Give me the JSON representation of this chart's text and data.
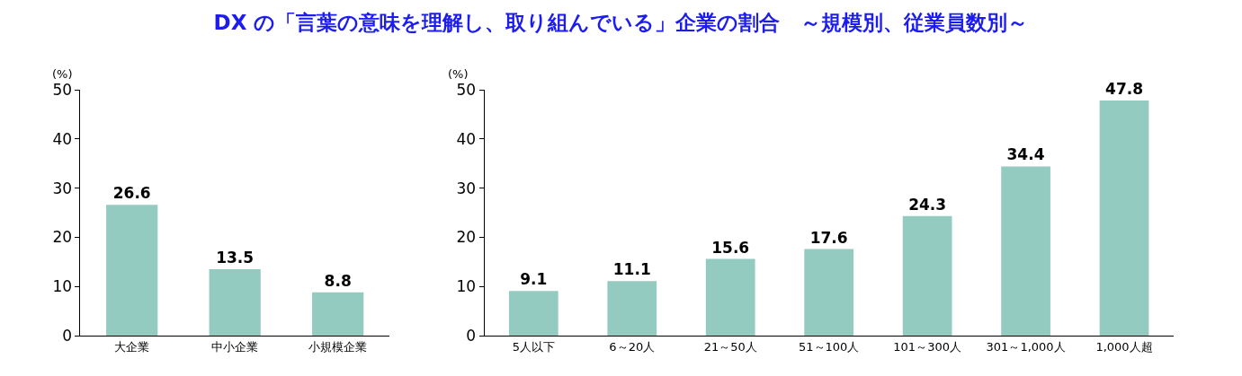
{
  "chart_data": [
    {
      "type": "bar",
      "title": "DX の「言葉の意味を理解し、取り組んでいる」企業の割合　～規模別、従業員数別～",
      "ylabel": "(%)",
      "categories": [
        "大企業",
        "中小企業",
        "小規模企業"
      ],
      "values": [
        26.6,
        13.5,
        8.8
      ],
      "color": "#93cbc1",
      "ylim": [
        0,
        50
      ],
      "yticks": [
        0,
        10,
        20,
        30,
        40,
        50
      ],
      "data_labels": true
    },
    {
      "type": "bar",
      "ylabel": "(%)",
      "categories": [
        "5人以下",
        "6～20人",
        "21～50人",
        "51～100人",
        "101～300人",
        "301～1,000人",
        "1,000人超"
      ],
      "values": [
        9.1,
        11.1,
        15.6,
        17.6,
        24.3,
        34.4,
        47.8
      ],
      "color": "#93cbc1",
      "ylim": [
        0,
        50
      ],
      "yticks": [
        0,
        10,
        20,
        30,
        40,
        50
      ],
      "data_labels": true
    }
  ]
}
